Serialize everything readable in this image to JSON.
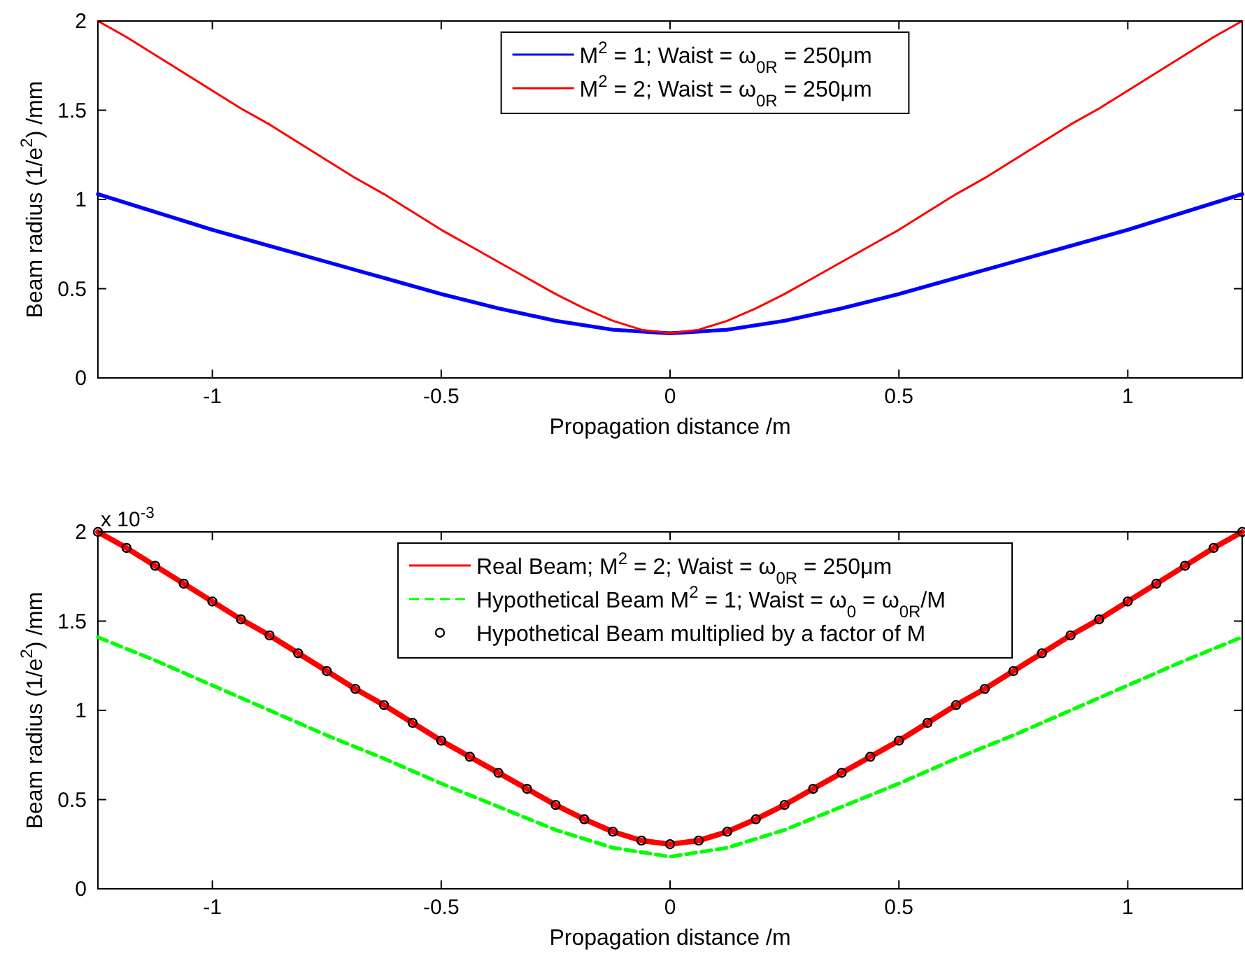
{
  "chart_data": [
    {
      "type": "line",
      "xlabel": "Propagation distance /m",
      "ylabel": "Beam radius (1/e$^{2}$) /mm",
      "xlim": [
        -1.25,
        1.25
      ],
      "ylim": [
        0,
        2
      ],
      "xticks": [
        -1,
        -0.5,
        0,
        0.5,
        1
      ],
      "yticks": [
        0,
        0.5,
        1,
        1.5,
        2
      ],
      "grid": false,
      "legend": "top",
      "series": [
        {
          "name": "M$^{2}$ = 1; Waist = ω$_{0R}$ = 250μm",
          "color": "#0000ff",
          "line_style": "solid",
          "x": [
            -1.25,
            -1.125,
            -1,
            -0.875,
            -0.75,
            -0.625,
            -0.5,
            -0.375,
            -0.25,
            -0.125,
            0,
            0.125,
            0.25,
            0.375,
            0.5,
            0.625,
            0.75,
            0.875,
            1,
            1.125,
            1.25
          ],
          "values": [
            1.03,
            0.93,
            0.83,
            0.74,
            0.65,
            0.56,
            0.47,
            0.39,
            0.32,
            0.27,
            0.25,
            0.27,
            0.32,
            0.39,
            0.47,
            0.56,
            0.65,
            0.74,
            0.83,
            0.93,
            1.03
          ]
        },
        {
          "name": "M$^{2}$ = 2; Waist = ω$_{0R}$ = 250μm",
          "color": "#ff0000",
          "line_style": "solid",
          "x": [
            -1.25,
            -1.1875,
            -1.125,
            -1.0625,
            -1,
            -0.9375,
            -0.875,
            -0.8125,
            -0.75,
            -0.6875,
            -0.625,
            -0.5625,
            -0.5,
            -0.4375,
            -0.375,
            -0.3125,
            -0.25,
            -0.1875,
            -0.125,
            -0.0625,
            0,
            0.0625,
            0.125,
            0.1875,
            0.25,
            0.3125,
            0.375,
            0.4375,
            0.5,
            0.5625,
            0.625,
            0.6875,
            0.75,
            0.8125,
            0.875,
            0.9375,
            1,
            1.0625,
            1.125,
            1.1875,
            1.25
          ],
          "values": [
            2.0,
            1.91,
            1.81,
            1.71,
            1.61,
            1.51,
            1.42,
            1.32,
            1.22,
            1.12,
            1.03,
            0.93,
            0.83,
            0.74,
            0.65,
            0.56,
            0.47,
            0.39,
            0.32,
            0.27,
            0.25,
            0.27,
            0.32,
            0.39,
            0.47,
            0.56,
            0.65,
            0.74,
            0.83,
            0.93,
            1.03,
            1.12,
            1.22,
            1.32,
            1.42,
            1.51,
            1.61,
            1.71,
            1.81,
            1.91,
            2.0
          ]
        }
      ]
    },
    {
      "type": "line",
      "xlabel": "Propagation distance /m",
      "ylabel": "Beam radius (1/e$^{2}$) /mm",
      "annotations": [
        "x 10$^{-3}$"
      ],
      "xlim": [
        -1.25,
        1.25
      ],
      "ylim": [
        0,
        2
      ],
      "xticks": [
        -1,
        -0.5,
        0,
        0.5,
        1
      ],
      "yticks": [
        0,
        0.5,
        1,
        1.5,
        2
      ],
      "grid": false,
      "legend": "top",
      "series": [
        {
          "name": "Real Beam; M$^{2}$ = 2; Waist = ω$_{0R}$ = 250μm",
          "color": "#ff0000",
          "line_style": "solid",
          "x": [
            -1.25,
            -1.1875,
            -1.125,
            -1.0625,
            -1,
            -0.9375,
            -0.875,
            -0.8125,
            -0.75,
            -0.6875,
            -0.625,
            -0.5625,
            -0.5,
            -0.4375,
            -0.375,
            -0.3125,
            -0.25,
            -0.1875,
            -0.125,
            -0.0625,
            0,
            0.0625,
            0.125,
            0.1875,
            0.25,
            0.3125,
            0.375,
            0.4375,
            0.5,
            0.5625,
            0.625,
            0.6875,
            0.75,
            0.8125,
            0.875,
            0.9375,
            1,
            1.0625,
            1.125,
            1.1875,
            1.25
          ],
          "values": [
            2.0,
            1.91,
            1.81,
            1.71,
            1.61,
            1.51,
            1.42,
            1.32,
            1.22,
            1.12,
            1.03,
            0.93,
            0.83,
            0.74,
            0.65,
            0.56,
            0.47,
            0.39,
            0.32,
            0.27,
            0.25,
            0.27,
            0.32,
            0.39,
            0.47,
            0.56,
            0.65,
            0.74,
            0.83,
            0.93,
            1.03,
            1.12,
            1.22,
            1.32,
            1.42,
            1.51,
            1.61,
            1.71,
            1.81,
            1.91,
            2.0
          ]
        },
        {
          "name": "Hypothetical Beam M$^{2}$ = 1; Waist = ω$_{0}$ = ω$_{0R}$/M",
          "color": "#00ff00",
          "line_style": "dashed",
          "x": [
            -1.25,
            -1.125,
            -1,
            -0.875,
            -0.75,
            -0.625,
            -0.5,
            -0.375,
            -0.25,
            -0.125,
            0,
            0.125,
            0.25,
            0.375,
            0.5,
            0.625,
            0.75,
            0.875,
            1,
            1.125,
            1.25
          ],
          "values": [
            1.41,
            1.28,
            1.14,
            1.0,
            0.86,
            0.73,
            0.59,
            0.46,
            0.33,
            0.23,
            0.18,
            0.23,
            0.33,
            0.46,
            0.59,
            0.73,
            0.86,
            1.0,
            1.14,
            1.28,
            1.41
          ]
        },
        {
          "name": "Hypothetical Beam multiplied by a factor of M",
          "type": "scatter",
          "marker": "circle",
          "color": "#000000",
          "x": [
            -1.25,
            -1.1875,
            -1.125,
            -1.0625,
            -1,
            -0.9375,
            -0.875,
            -0.8125,
            -0.75,
            -0.6875,
            -0.625,
            -0.5625,
            -0.5,
            -0.4375,
            -0.375,
            -0.3125,
            -0.25,
            -0.1875,
            -0.125,
            -0.0625,
            0,
            0.0625,
            0.125,
            0.1875,
            0.25,
            0.3125,
            0.375,
            0.4375,
            0.5,
            0.5625,
            0.625,
            0.6875,
            0.75,
            0.8125,
            0.875,
            0.9375,
            1,
            1.0625,
            1.125,
            1.1875,
            1.25
          ],
          "values": [
            2.0,
            1.91,
            1.81,
            1.71,
            1.61,
            1.51,
            1.42,
            1.32,
            1.22,
            1.12,
            1.03,
            0.93,
            0.83,
            0.74,
            0.65,
            0.56,
            0.47,
            0.39,
            0.32,
            0.27,
            0.25,
            0.27,
            0.32,
            0.39,
            0.47,
            0.56,
            0.65,
            0.74,
            0.83,
            0.93,
            1.03,
            1.12,
            1.22,
            1.32,
            1.42,
            1.51,
            1.61,
            1.71,
            1.81,
            1.91,
            2.0
          ]
        }
      ]
    }
  ]
}
